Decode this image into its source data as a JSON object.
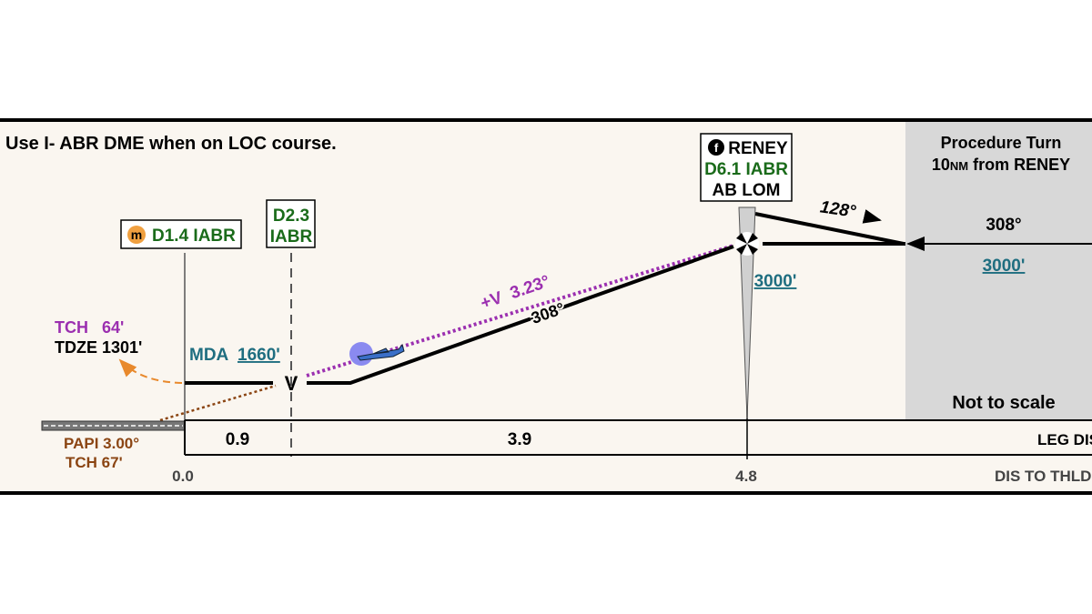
{
  "note": "Use I- ABR DME when on LOC course.",
  "fixes": [
    {
      "icon": "m",
      "label": "D1.4 IABR"
    },
    {
      "lines": [
        "D2.3",
        "IABR"
      ]
    },
    {
      "icon": "f",
      "name": "RENEY",
      "distance": "D6.1 IABR",
      "facility": "AB LOM"
    }
  ],
  "procedure_turn": {
    "title": "Procedure Turn",
    "distance": "10",
    "unit": "NM",
    "suffix": "from RENEY",
    "outbound": "128°",
    "inbound": "308°",
    "altitude": "3000'",
    "note": "Not to scale"
  },
  "profile": {
    "fix_altitude": "3000'",
    "glidepath": "+V  3.23°",
    "course": "308°",
    "tch": "TCH   64'",
    "tdze": "TDZE 1301'",
    "mda_label": "MDA",
    "mda": "1660'",
    "vdp": "V",
    "papi": "PAPI 3.00°",
    "papi_tch": "TCH 67'"
  },
  "leg_distances": {
    "values": [
      "0.9",
      "3.9"
    ],
    "label": "LEG DIS"
  },
  "threshold_distances": {
    "values": [
      "0.0",
      "4.8"
    ],
    "label": "DIS TO THLD"
  }
}
